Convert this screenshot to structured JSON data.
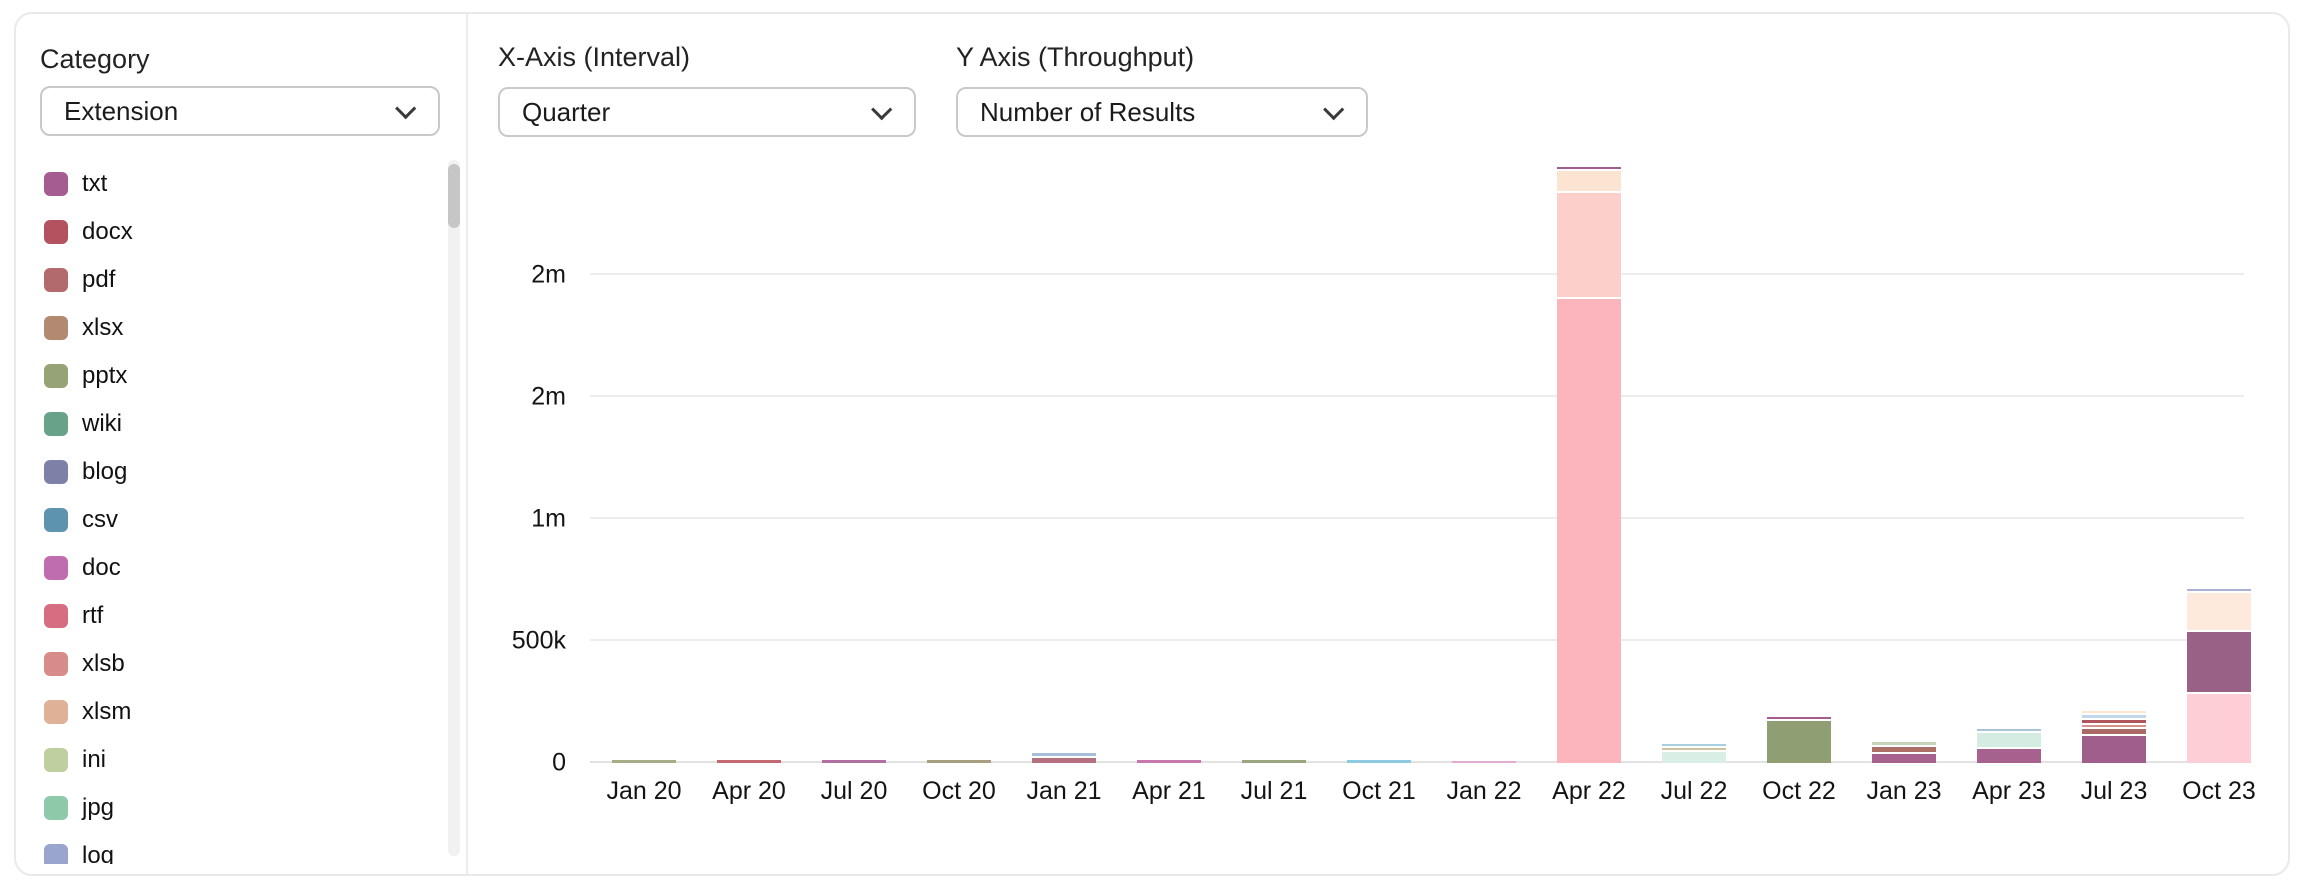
{
  "sidebar": {
    "category_label": "Category",
    "category_select": {
      "value": "Extension"
    },
    "legend": [
      {
        "label": "txt",
        "color": "#a55c90"
      },
      {
        "label": "docx",
        "color": "#b5525f"
      },
      {
        "label": "pdf",
        "color": "#b26a6c"
      },
      {
        "label": "xlsx",
        "color": "#b28a72"
      },
      {
        "label": "pptx",
        "color": "#96a377"
      },
      {
        "label": "wiki",
        "color": "#68a289"
      },
      {
        "label": "blog",
        "color": "#7d81a8"
      },
      {
        "label": "csv",
        "color": "#5d93ae"
      },
      {
        "label": "doc",
        "color": "#c06db0"
      },
      {
        "label": "rtf",
        "color": "#d66d80"
      },
      {
        "label": "xlsb",
        "color": "#d88c8a"
      },
      {
        "label": "xlsm",
        "color": "#dfb196"
      },
      {
        "label": "ini",
        "color": "#becfa0"
      },
      {
        "label": "jpg",
        "color": "#8ec9a9"
      },
      {
        "label": "log",
        "color": "#9aa5cf"
      }
    ]
  },
  "controls": {
    "x_axis": {
      "label": "X-Axis (Interval)",
      "value": "Quarter"
    },
    "y_axis": {
      "label": "Y Axis (Throughput)",
      "value": "Number of Results"
    }
  },
  "chart_data": {
    "type": "bar",
    "stacked": true,
    "title": "",
    "xlabel": "Quarter",
    "ylabel": "Number of Results",
    "unit_note": "value_k = thousands of results, estimated from gridlines (500k per gridline)",
    "grid": "horizontal",
    "ylim_k": [
      0,
      2650
    ],
    "y_ticks": [
      {
        "label": "0",
        "value_k": 0
      },
      {
        "label": "500k",
        "value_k": 500
      },
      {
        "label": "1m",
        "value_k": 1000
      },
      {
        "label": "2m",
        "value_k": 1500
      },
      {
        "label": "2m",
        "value_k": 2000
      }
    ],
    "categories": [
      "Jan 20",
      "Apr 20",
      "Jul 20",
      "Oct 20",
      "Jan 21",
      "Apr 21",
      "Jul 21",
      "Oct 21",
      "Jan 22",
      "Apr 22",
      "Jul 22",
      "Oct 22",
      "Jan 23",
      "Apr 23",
      "Jul 23",
      "Oct 23"
    ],
    "bars": [
      {
        "quarter": "Jan 20",
        "segments": [
          {
            "category": "pptx",
            "color": "#a4ad88",
            "value_k": 12
          }
        ]
      },
      {
        "quarter": "Apr 20",
        "segments": [
          {
            "category": "docx",
            "color": "#c26a70",
            "value_k": 12
          }
        ]
      },
      {
        "quarter": "Jul 20",
        "segments": [
          {
            "category": "txt",
            "color": "#b070a0",
            "value_k": 12
          }
        ]
      },
      {
        "quarter": "Oct 20",
        "segments": [
          {
            "category": "xlsx",
            "color": "#a89e80",
            "value_k": 12
          }
        ]
      },
      {
        "quarter": "Jan 21",
        "segments": [
          {
            "category": "docx",
            "color": "#b4707f",
            "value_k": 20
          },
          {
            "category": "blog",
            "color": "#a9bcd8",
            "value_k": 12
          }
        ]
      },
      {
        "quarter": "Apr 21",
        "segments": [
          {
            "category": "doc",
            "color": "#c779ae",
            "value_k": 12
          }
        ]
      },
      {
        "quarter": "Jul 21",
        "segments": [
          {
            "category": "pptx",
            "color": "#9aa67f",
            "value_k": 12
          }
        ]
      },
      {
        "quarter": "Oct 21",
        "segments": [
          {
            "category": "csv",
            "color": "#8ecbe3",
            "value_k": 12
          }
        ]
      },
      {
        "quarter": "Jan 22",
        "segments": [
          {
            "category": "doc",
            "color": "#dfaed2",
            "value_k": 10
          }
        ]
      },
      {
        "quarter": "Apr 22",
        "segments": [
          {
            "category": "rtf",
            "color": "#fcb5bc",
            "value_k": 1900
          },
          {
            "category": "xlsb",
            "color": "#fccfcb",
            "value_k": 426
          },
          {
            "category": "xlsm",
            "color": "#fce4d2",
            "value_k": 82
          },
          {
            "category": "txt",
            "color": "#a25c8e",
            "value_k": 12
          }
        ]
      },
      {
        "quarter": "Jul 22",
        "segments": [
          {
            "category": "jpg",
            "color": "#d9efe5",
            "value_k": 45
          },
          {
            "category": "xlsx",
            "color": "#cbc3a2",
            "value_k": 8
          },
          {
            "category": "csv",
            "color": "#a8cfe0",
            "value_k": 8
          }
        ]
      },
      {
        "quarter": "Oct 22",
        "segments": [
          {
            "category": "pptx",
            "color": "#909e73",
            "value_k": 172
          },
          {
            "category": "txt",
            "color": "#a25c8e",
            "value_k": 8
          }
        ]
      },
      {
        "quarter": "Jan 23",
        "segments": [
          {
            "category": "txt",
            "color": "#a7618e",
            "value_k": 37
          },
          {
            "category": "pdf",
            "color": "#ad6e68",
            "value_k": 20
          },
          {
            "category": "ini",
            "color": "#c7d2b6",
            "value_k": 12
          }
        ]
      },
      {
        "quarter": "Apr 23",
        "segments": [
          {
            "category": "txt",
            "color": "#a7618e",
            "value_k": 57
          },
          {
            "category": "jpg",
            "color": "#d5ece2",
            "value_k": 57
          },
          {
            "category": "blog",
            "color": "#a9c3d8",
            "value_k": 10
          }
        ]
      },
      {
        "quarter": "Jul 23",
        "segments": [
          {
            "category": "txt",
            "color": "#a05e8c",
            "value_k": 111
          },
          {
            "category": "pdf",
            "color": "#a96a66",
            "value_k": 20
          },
          {
            "category": "xlsb",
            "color": "#d5908f",
            "value_k": 10
          },
          {
            "category": "docx",
            "color": "#b05560",
            "value_k": 12
          },
          {
            "category": "log",
            "color": "#c3d6ea",
            "value_k": 10
          },
          {
            "category": "xlsm",
            "color": "#fde5d0",
            "value_k": 10
          }
        ]
      },
      {
        "quarter": "Oct 23",
        "segments": [
          {
            "category": "xlsb",
            "color": "#fdced6",
            "value_k": 283
          },
          {
            "category": "txt",
            "color": "#996185",
            "value_k": 246
          },
          {
            "category": "xlsm",
            "color": "#fdeadd",
            "value_k": 152
          },
          {
            "category": "log",
            "color": "#aab0d6",
            "value_k": 8
          }
        ]
      }
    ]
  }
}
